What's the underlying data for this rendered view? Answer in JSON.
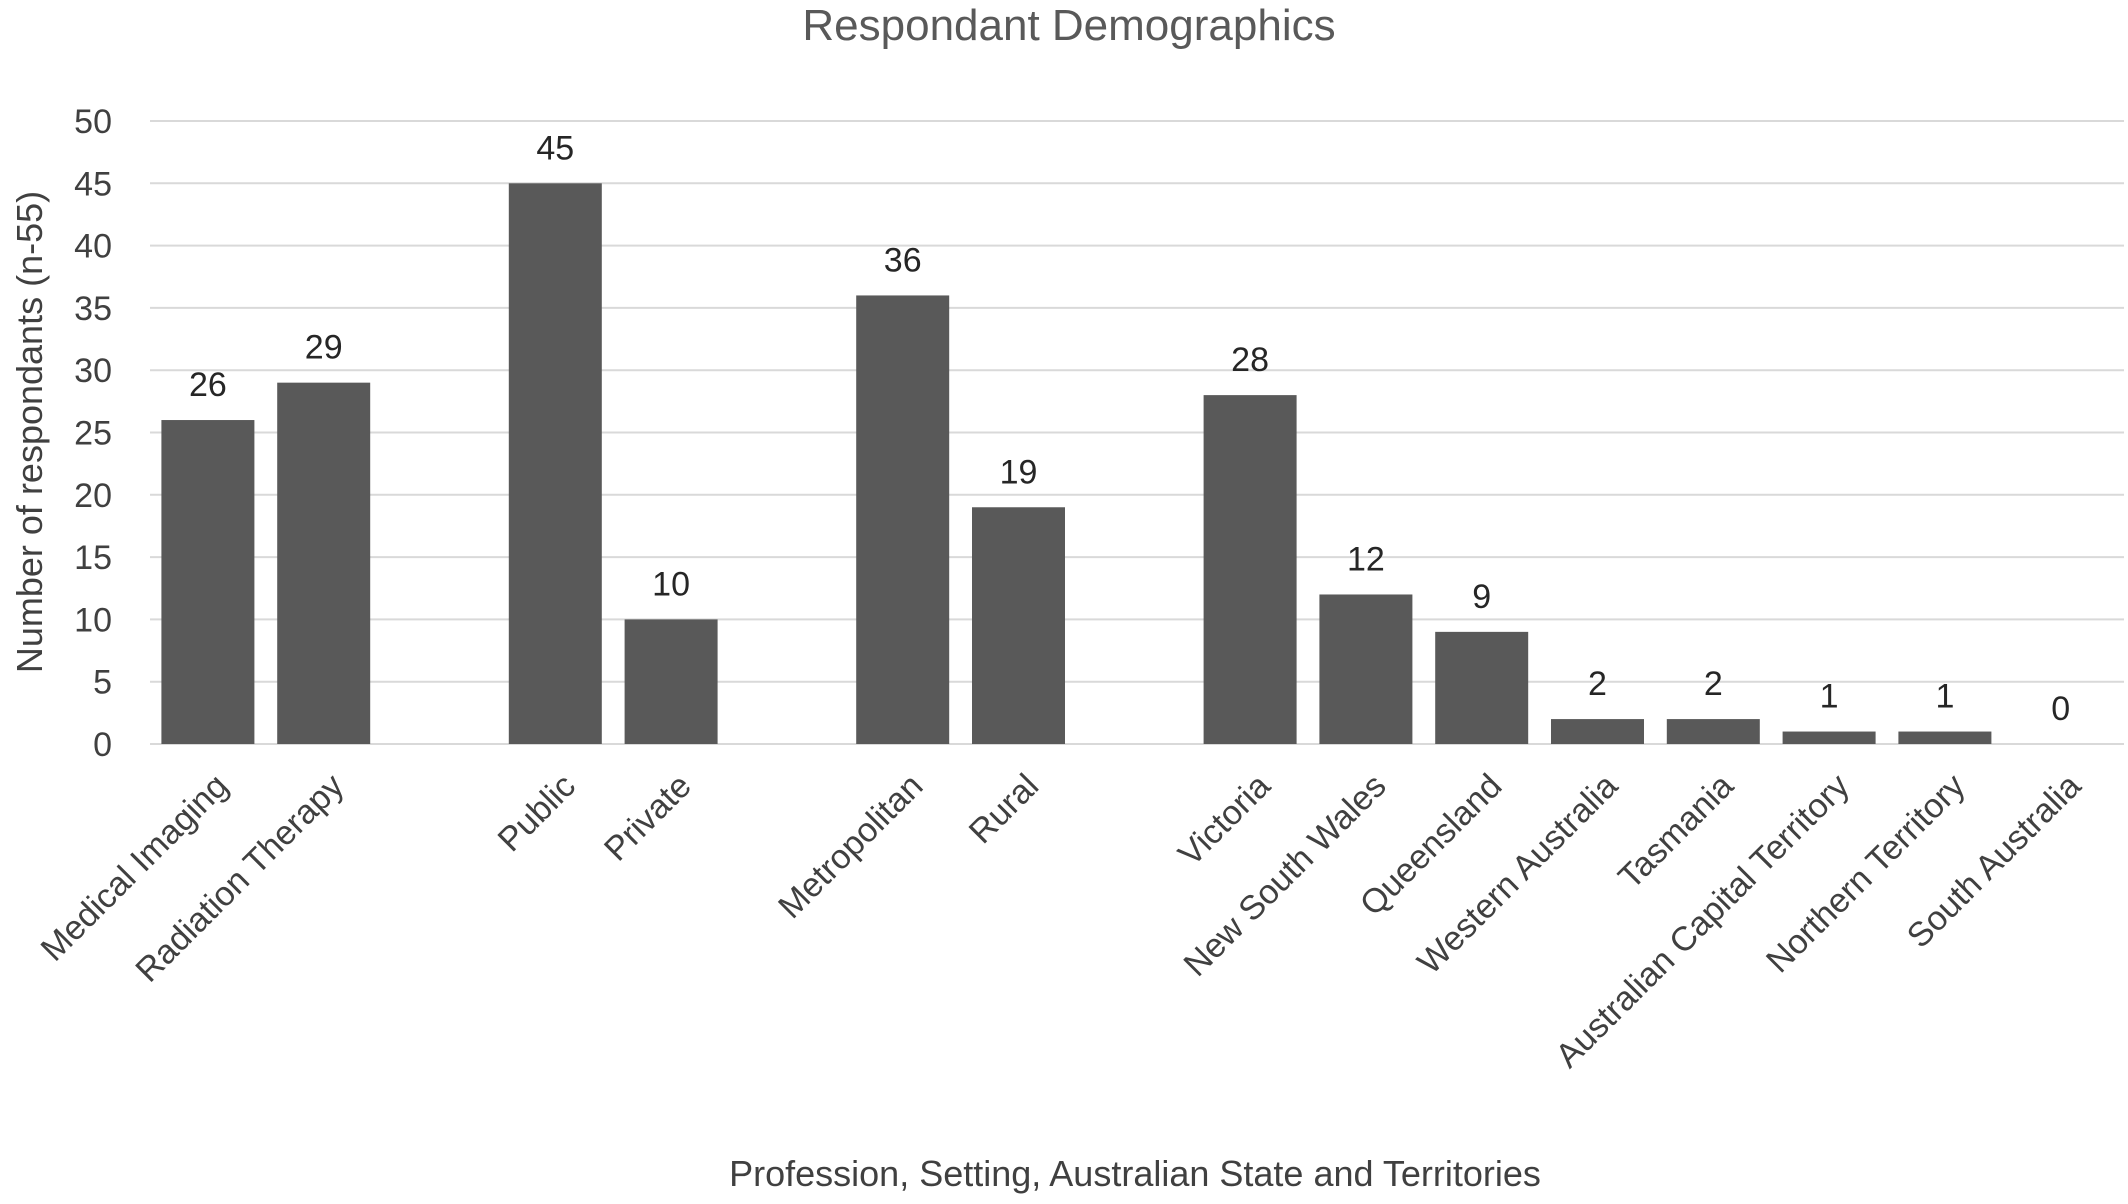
{
  "chart_data": {
    "type": "bar",
    "title": "Respondant Demographics",
    "xlabel": "Profession, Setting,  Australian State and Territories",
    "ylabel": "Number of respondants (n-55)",
    "ylim": [
      0,
      50
    ],
    "yticks": [
      0,
      5,
      10,
      15,
      20,
      25,
      30,
      35,
      40,
      45,
      50
    ],
    "grid": true,
    "legend": "none",
    "bar_color": "#595959",
    "groups": [
      {
        "categories": [
          "Medical Imaging",
          "Radiation Therapy"
        ],
        "values": [
          26,
          29
        ]
      },
      {
        "categories": [
          "Public",
          "Private"
        ],
        "values": [
          45,
          10
        ]
      },
      {
        "categories": [
          "Metropolitan",
          "Rural"
        ],
        "values": [
          36,
          19
        ]
      },
      {
        "categories": [
          "Victoria",
          "New South Wales",
          "Queensland",
          "Western Australia",
          "Tasmania",
          "Australian Capital Territory",
          "Northern Territory",
          "South Australia"
        ],
        "values": [
          28,
          12,
          9,
          2,
          2,
          1,
          1,
          0
        ]
      }
    ]
  }
}
